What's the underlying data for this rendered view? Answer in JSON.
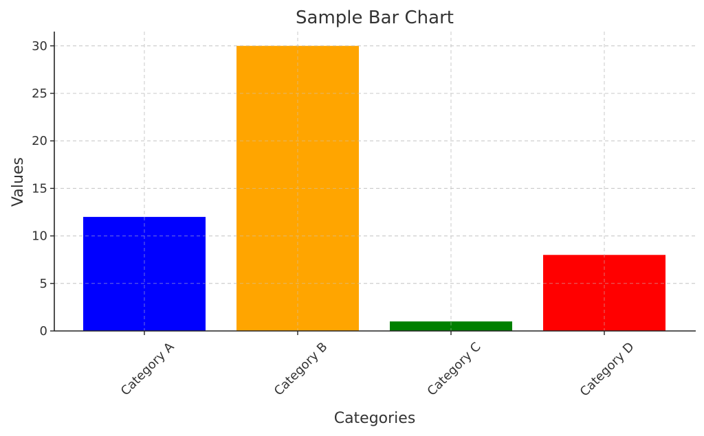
{
  "chart_data": {
    "type": "bar",
    "title": "Sample Bar Chart",
    "xlabel": "Categories",
    "ylabel": "Values",
    "categories": [
      "Category A",
      "Category B",
      "Category C",
      "Category D"
    ],
    "values": [
      12,
      30,
      1,
      8
    ],
    "colors": [
      "#0000ff",
      "#ffa500",
      "#008000",
      "#ff0000"
    ],
    "ylim": [
      0,
      31.5
    ],
    "yticks": [
      0,
      5,
      10,
      15,
      20,
      25,
      30
    ],
    "grid": true,
    "legend": "none"
  }
}
